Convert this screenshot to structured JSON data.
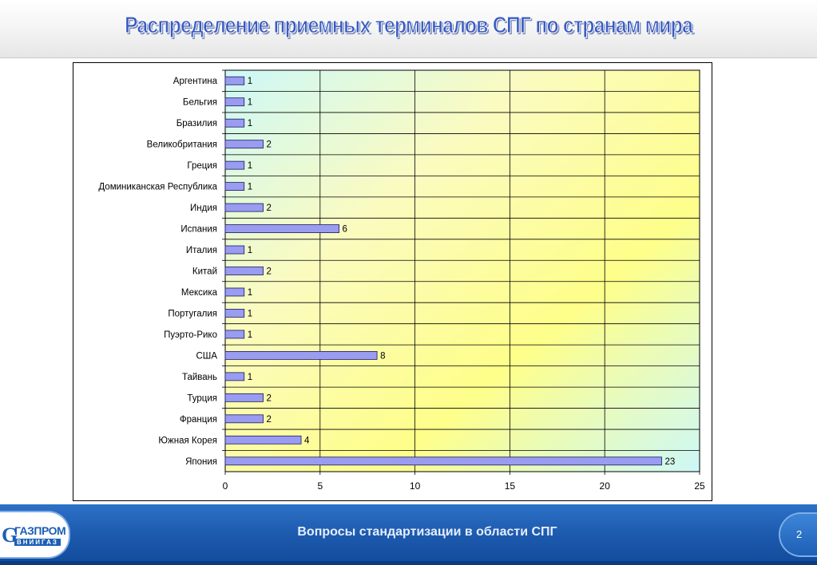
{
  "slide": {
    "title": "Распределение приемных терминалов СПГ по странам мира",
    "footer_text": "Вопросы стандартизации в области СПГ",
    "page_number": "2"
  },
  "logo": {
    "main": "ГАЗПРОМ",
    "sub": "ВНИИГАЗ"
  },
  "colors": {
    "title": "#3a5bc0",
    "bar_fill": "#9a9cf2",
    "bar_stroke": "#1a1a5a",
    "plot_gradient": [
      "#cdf8f8",
      "#fbfbbf",
      "#fefe8a",
      "#cdf8f8"
    ],
    "footer": "#1e5cb0"
  },
  "chart_data": {
    "type": "bar",
    "orientation": "horizontal",
    "categories": [
      "Аргентина",
      "Бельгия",
      "Бразилия",
      "Великобритания",
      "Греция",
      "Доминиканская Республика",
      "Индия",
      "Испания",
      "Италия",
      "Китай",
      "Мексика",
      "Португалия",
      "Пуэрто-Рико",
      "США",
      "Тайвань",
      "Турция",
      "Франция",
      "Южная Корея",
      "Япония"
    ],
    "values": [
      1,
      1,
      1,
      2,
      1,
      1,
      2,
      6,
      1,
      2,
      1,
      1,
      1,
      8,
      1,
      2,
      2,
      4,
      23
    ],
    "data_labels": [
      "1",
      "1",
      "1",
      "2",
      "1",
      "1",
      "2",
      "6",
      "1",
      "2",
      "1",
      "1",
      "1",
      "8",
      "1",
      "2",
      "2",
      "4",
      "23"
    ],
    "xlim": [
      0,
      25
    ],
    "x_ticks": [
      0,
      5,
      10,
      15,
      20,
      25
    ],
    "x_tick_labels": [
      "0",
      "5",
      "10",
      "15",
      "20",
      "25"
    ],
    "grid": true,
    "legend": "none"
  }
}
